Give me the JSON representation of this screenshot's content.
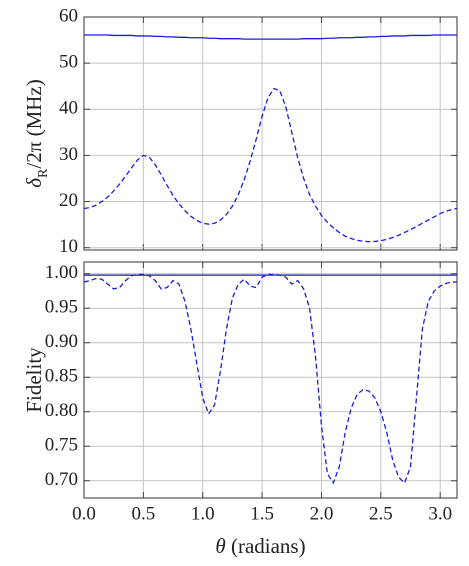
{
  "chart_data": [
    {
      "type": "line",
      "ylabel": [
        "δ",
        "R",
        "/2π (MHz)"
      ],
      "x": [
        0,
        0.05,
        0.1,
        0.15,
        0.2,
        0.25,
        0.3,
        0.35,
        0.4,
        0.45,
        0.5,
        0.55,
        0.6,
        0.65,
        0.7,
        0.75,
        0.8,
        0.85,
        0.9,
        0.95,
        1.0,
        1.05,
        1.1,
        1.15,
        1.2,
        1.25,
        1.3,
        1.35,
        1.4,
        1.45,
        1.5,
        1.55,
        1.6,
        1.65,
        1.7,
        1.75,
        1.8,
        1.85,
        1.9,
        1.95,
        2.0,
        2.05,
        2.1,
        2.15,
        2.2,
        2.25,
        2.3,
        2.35,
        2.4,
        2.45,
        2.5,
        2.55,
        2.6,
        2.65,
        2.7,
        2.75,
        2.8,
        2.85,
        2.9,
        2.95,
        3.0,
        3.05,
        3.1,
        3.14
      ],
      "series": [
        {
          "color": "#1c1cd8",
          "style": "solid",
          "values": [
            56.1,
            56.1,
            56.1,
            56.1,
            56.1,
            56.0,
            56.0,
            56.0,
            56.0,
            55.9,
            55.9,
            55.9,
            55.8,
            55.8,
            55.7,
            55.7,
            55.6,
            55.6,
            55.5,
            55.5,
            55.5,
            55.4,
            55.4,
            55.3,
            55.3,
            55.3,
            55.3,
            55.2,
            55.2,
            55.2,
            55.2,
            55.2,
            55.2,
            55.2,
            55.2,
            55.2,
            55.2,
            55.3,
            55.3,
            55.3,
            55.3,
            55.4,
            55.4,
            55.5,
            55.5,
            55.5,
            55.6,
            55.6,
            55.7,
            55.7,
            55.8,
            55.8,
            55.9,
            55.9,
            55.9,
            56.0,
            56.0,
            56.0,
            56.0,
            56.1,
            56.1,
            56.1,
            56.1,
            56.1
          ]
        },
        {
          "color": "#1c1cd8",
          "style": "dashed",
          "values": [
            18.5,
            18.7,
            19.2,
            20,
            21,
            22.3,
            23.8,
            25.5,
            27.3,
            29,
            30,
            29.6,
            28,
            25.8,
            23.5,
            21.3,
            19.5,
            18,
            16.8,
            15.9,
            15.3,
            15.1,
            15.3,
            16,
            17.2,
            19,
            21.5,
            24.8,
            28.8,
            33.5,
            38.5,
            42.5,
            44.5,
            44,
            40.5,
            35,
            29.5,
            25,
            21.5,
            19,
            17,
            15.5,
            14.3,
            13.3,
            12.5,
            12,
            11.6,
            11.4,
            11.3,
            11.35,
            11.5,
            11.8,
            12.2,
            12.7,
            13.3,
            13.9,
            14.6,
            15.3,
            16,
            16.7,
            17.4,
            17.9,
            18.3,
            18.5
          ]
        }
      ],
      "xlim": [
        0,
        3.1416
      ],
      "xticks": [
        {
          "value": 0,
          "label": "0.0"
        },
        {
          "value": 0.5,
          "label": "0.5"
        },
        {
          "value": 1,
          "label": "1.0"
        },
        {
          "value": 1.5,
          "label": "1.5"
        },
        {
          "value": 2,
          "label": "2.0"
        },
        {
          "value": 2.5,
          "label": "2.5"
        },
        {
          "value": 3,
          "label": "3.0"
        }
      ],
      "ylim": [
        9.5,
        60
      ],
      "yticks": [
        10,
        20,
        30,
        40,
        50,
        60
      ],
      "grid": true
    },
    {
      "type": "line",
      "ylabel": [
        "Fidelity"
      ],
      "xlabel": [
        "θ",
        " (radians)"
      ],
      "x": [
        0,
        0.05,
        0.1,
        0.15,
        0.2,
        0.25,
        0.3,
        0.35,
        0.4,
        0.45,
        0.5,
        0.55,
        0.6,
        0.65,
        0.7,
        0.75,
        0.8,
        0.85,
        0.9,
        0.95,
        1.0,
        1.05,
        1.1,
        1.15,
        1.2,
        1.25,
        1.3,
        1.35,
        1.4,
        1.45,
        1.5,
        1.55,
        1.6,
        1.65,
        1.7,
        1.75,
        1.8,
        1.85,
        1.9,
        1.95,
        2.0,
        2.05,
        2.1,
        2.15,
        2.2,
        2.25,
        2.3,
        2.35,
        2.4,
        2.45,
        2.5,
        2.55,
        2.6,
        2.65,
        2.7,
        2.75,
        2.8,
        2.85,
        2.9,
        2.95,
        3.0,
        3.05,
        3.1,
        3.14
      ],
      "series": [
        {
          "color": "#1c1cd8",
          "style": "solid",
          "values": [
            0.998,
            0.998,
            0.998,
            0.998,
            0.998,
            0.998,
            0.998,
            0.998,
            0.998,
            0.998,
            0.998,
            0.998,
            0.998,
            0.998,
            0.998,
            0.998,
            0.998,
            0.998,
            0.998,
            0.998,
            0.998,
            0.998,
            0.998,
            0.998,
            0.998,
            0.998,
            0.998,
            0.998,
            0.998,
            0.998,
            0.998,
            0.998,
            0.998,
            0.998,
            0.998,
            0.998,
            0.998,
            0.998,
            0.998,
            0.998,
            0.998,
            0.998,
            0.998,
            0.998,
            0.998,
            0.998,
            0.998,
            0.998,
            0.998,
            0.998,
            0.998,
            0.998,
            0.998,
            0.998,
            0.998,
            0.998,
            0.998,
            0.998,
            0.998,
            0.998,
            0.998,
            0.998,
            0.998,
            0.998
          ]
        },
        {
          "color": "#1c1cd8",
          "style": "dashed",
          "values": [
            0.988,
            0.99,
            0.993,
            0.992,
            0.985,
            0.978,
            0.98,
            0.99,
            0.997,
            0.999,
            0.999,
            0.997,
            0.99,
            0.978,
            0.98,
            0.99,
            0.985,
            0.96,
            0.92,
            0.87,
            0.82,
            0.797,
            0.81,
            0.86,
            0.92,
            0.965,
            0.985,
            0.992,
            0.982,
            0.98,
            0.995,
            0.999,
            0.999,
            0.998,
            0.995,
            0.985,
            0.99,
            0.978,
            0.95,
            0.88,
            0.78,
            0.71,
            0.697,
            0.72,
            0.77,
            0.805,
            0.825,
            0.832,
            0.83,
            0.82,
            0.8,
            0.77,
            0.73,
            0.705,
            0.697,
            0.72,
            0.82,
            0.92,
            0.96,
            0.975,
            0.982,
            0.986,
            0.988,
            0.988
          ]
        }
      ],
      "xlim": [
        0,
        3.1416
      ],
      "xticks": [
        {
          "value": 0,
          "label": "0.0"
        },
        {
          "value": 0.5,
          "label": "0.5"
        },
        {
          "value": 1,
          "label": "1.0"
        },
        {
          "value": 1.5,
          "label": "1.5"
        },
        {
          "value": 2,
          "label": "2.0"
        },
        {
          "value": 2.5,
          "label": "2.5"
        },
        {
          "value": 3,
          "label": "3.0"
        }
      ],
      "ylim": [
        0.675,
        1.017
      ],
      "yticks": [
        {
          "value": 0.7,
          "label": "0.70"
        },
        {
          "value": 0.75,
          "label": "0.75"
        },
        {
          "value": 0.8,
          "label": "0.80"
        },
        {
          "value": 0.85,
          "label": "0.85"
        },
        {
          "value": 0.9,
          "label": "0.90"
        },
        {
          "value": 0.95,
          "label": "0.95"
        },
        {
          "value": 1.0,
          "label": "1.00"
        }
      ],
      "grid": true
    }
  ]
}
